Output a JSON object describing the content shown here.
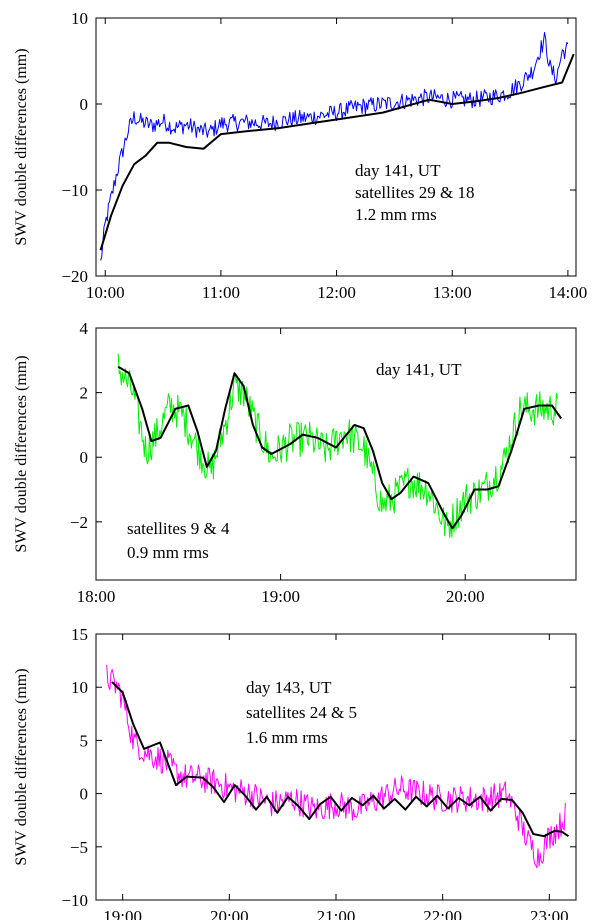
{
  "chart_data": [
    {
      "type": "line",
      "ylabel": "SWV double differences (mm)",
      "xlabel": "",
      "xlim": [
        9.92,
        14.07
      ],
      "ylim": [
        -20,
        10
      ],
      "x_ticks": [
        10,
        11,
        12,
        13,
        14
      ],
      "x_tick_labels": [
        "10:00",
        "11:00",
        "12:00",
        "13:00",
        "14:00"
      ],
      "y_ticks": [
        -20,
        -10,
        0,
        10
      ],
      "y_tick_labels": [
        "−20",
        "−10",
        "0",
        "10"
      ],
      "annotations": [
        "day 141, UT",
        "satellites 29 & 18",
        "1.2 mm rms"
      ],
      "annotation_placement": "right-center",
      "series": [
        {
          "style": "noisy-observed",
          "color": "#0000ff",
          "x": [
            9.96,
            10.0,
            10.05,
            10.1,
            10.15,
            10.2,
            10.25,
            10.3,
            10.4,
            10.5,
            10.6,
            10.7,
            10.8,
            10.9,
            11.0,
            11.2,
            11.4,
            11.6,
            11.8,
            12.0,
            12.2,
            12.4,
            12.6,
            12.8,
            13.0,
            13.2,
            13.4,
            13.5,
            13.6,
            13.7,
            13.75,
            13.8,
            13.85,
            13.9,
            13.95,
            14.0
          ],
          "y": [
            -18.5,
            -14,
            -11,
            -8,
            -5.5,
            -3,
            -1.5,
            -2,
            -2.5,
            -2,
            -2.8,
            -2.4,
            -3,
            -3.3,
            -2.3,
            -2.1,
            -2.3,
            -1.8,
            -1.5,
            -1.0,
            -0.3,
            0,
            0.4,
            0.8,
            0.5,
            0.5,
            1.0,
            1.5,
            2.5,
            4,
            6,
            7.5,
            4,
            3,
            6,
            6.5
          ],
          "noise": 1.0
        },
        {
          "style": "smoothed",
          "color": "#000000",
          "x": [
            9.96,
            10.05,
            10.15,
            10.25,
            10.35,
            10.45,
            10.55,
            10.7,
            10.85,
            11.0,
            11.2,
            11.5,
            11.8,
            12.0,
            12.4,
            12.8,
            13.0,
            13.2,
            13.4,
            13.6,
            13.8,
            13.95,
            14.05
          ],
          "y": [
            -17,
            -13,
            -9.5,
            -7,
            -6,
            -4.5,
            -4.5,
            -5,
            -5.2,
            -3.5,
            -3.2,
            -2.8,
            -2.2,
            -1.8,
            -1.0,
            0.5,
            0,
            0.3,
            0.7,
            1.3,
            2.0,
            2.5,
            5.8
          ],
          "noise": 0
        }
      ]
    },
    {
      "type": "line",
      "ylabel": "SWV double differences (mm)",
      "xlabel": "",
      "xlim": [
        18.0,
        20.6
      ],
      "ylim": [
        -3.8,
        4
      ],
      "x_ticks": [
        18,
        19,
        20
      ],
      "x_tick_labels": [
        "18:00",
        "19:00",
        "20:00"
      ],
      "y_ticks": [
        -2,
        0,
        2,
        4
      ],
      "y_tick_labels": [
        "−2",
        "0",
        "2",
        "4"
      ],
      "annotations": [
        "day 141, UT",
        "satellites 9 & 4",
        "0.9 mm rms"
      ],
      "annotation_placement": "top-right and bottom-left",
      "series": [
        {
          "style": "noisy-observed",
          "color": "#00ee00",
          "x": [
            18.12,
            18.2,
            18.27,
            18.33,
            18.4,
            18.47,
            18.55,
            18.62,
            18.7,
            18.75,
            18.8,
            18.88,
            18.95,
            19.05,
            19.15,
            19.25,
            19.35,
            19.45,
            19.55,
            19.6,
            19.7,
            19.8,
            19.9,
            20.0,
            20.1,
            20.2,
            20.3,
            20.4,
            20.5
          ],
          "y": [
            2.8,
            2.0,
            0.2,
            0.7,
            1.6,
            1.3,
            0.3,
            -0.5,
            1.0,
            2.2,
            2.0,
            0.8,
            0.0,
            0.5,
            0.6,
            0.2,
            0.8,
            0.3,
            -1.5,
            -1.3,
            -0.7,
            -1.0,
            -2.2,
            -1.3,
            -1.0,
            -0.3,
            1.5,
            1.5,
            1.5
          ],
          "noise": 0.55
        },
        {
          "style": "smoothed",
          "color": "#000000",
          "x": [
            18.12,
            18.18,
            18.25,
            18.3,
            18.35,
            18.43,
            18.5,
            18.55,
            18.6,
            18.65,
            18.7,
            18.75,
            18.8,
            18.85,
            18.9,
            18.95,
            19.05,
            19.12,
            19.2,
            19.3,
            19.4,
            19.45,
            19.5,
            19.55,
            19.6,
            19.65,
            19.72,
            19.8,
            19.88,
            19.93,
            19.98,
            20.05,
            20.12,
            20.18,
            20.25,
            20.32,
            20.4,
            20.47,
            20.52
          ],
          "y": [
            2.8,
            2.6,
            1.5,
            0.5,
            0.6,
            1.5,
            1.6,
            0.8,
            -0.3,
            0.2,
            1.5,
            2.6,
            2.2,
            1.0,
            0.3,
            0.1,
            0.4,
            0.7,
            0.6,
            0.3,
            1.0,
            0.9,
            0.2,
            -0.8,
            -1.3,
            -1.1,
            -0.6,
            -0.8,
            -1.7,
            -2.2,
            -1.8,
            -1.0,
            -1.0,
            -0.9,
            0.2,
            1.5,
            1.6,
            1.6,
            1.2
          ],
          "noise": 0
        }
      ]
    },
    {
      "type": "line",
      "ylabel": "SWV double differences (mm)",
      "xlabel": "",
      "xlim": [
        18.75,
        23.25
      ],
      "ylim": [
        -10,
        15
      ],
      "x_ticks": [
        19,
        20,
        21,
        22,
        23
      ],
      "x_tick_labels": [
        "19:00",
        "20:00",
        "21:00",
        "22:00",
        "23:00"
      ],
      "y_ticks": [
        -10,
        -5,
        0,
        5,
        10,
        15
      ],
      "y_tick_labels": [
        "−10",
        "−5",
        "0",
        "5",
        "10",
        "15"
      ],
      "annotations": [
        "day 143, UT",
        "satellites 24 & 5",
        "1.6 mm rms"
      ],
      "annotation_placement": "top-center",
      "series": [
        {
          "style": "noisy-observed",
          "color": "#ff00ff",
          "x": [
            18.85,
            18.95,
            19.0,
            19.05,
            19.1,
            19.2,
            19.3,
            19.4,
            19.5,
            19.6,
            19.7,
            19.8,
            19.9,
            20.0,
            20.2,
            20.4,
            20.6,
            20.8,
            21.0,
            21.2,
            21.4,
            21.6,
            21.8,
            22.0,
            22.2,
            22.4,
            22.6,
            22.7,
            22.8,
            22.9,
            23.0,
            23.1,
            23.15
          ],
          "y": [
            11,
            10,
            9,
            7,
            5,
            4,
            3.5,
            3,
            2,
            1.5,
            1.5,
            1.2,
            1,
            0.5,
            0,
            -1,
            -0.5,
            -1.5,
            -1,
            -1.5,
            -0.5,
            0.5,
            0,
            -0.5,
            -0.5,
            -0.5,
            0,
            -2,
            -4.5,
            -6,
            -4,
            -3,
            -2
          ],
          "noise": 1.3
        },
        {
          "style": "smoothed",
          "color": "#000000",
          "x": [
            18.9,
            19.0,
            19.1,
            19.2,
            19.35,
            19.5,
            19.6,
            19.75,
            19.85,
            19.95,
            20.05,
            20.15,
            20.25,
            20.35,
            20.45,
            20.55,
            20.65,
            20.75,
            20.85,
            20.95,
            21.05,
            21.15,
            21.25,
            21.35,
            21.45,
            21.55,
            21.65,
            21.75,
            21.85,
            21.95,
            22.05,
            22.15,
            22.25,
            22.35,
            22.45,
            22.55,
            22.65,
            22.75,
            22.85,
            22.95,
            23.05,
            23.12,
            23.18
          ],
          "y": [
            10.5,
            9.5,
            6.5,
            4.2,
            4.8,
            0.8,
            1.6,
            1.5,
            0.6,
            -0.8,
            0.8,
            -0.2,
            -1.5,
            -0.3,
            -1.8,
            -0.3,
            -1.2,
            -2.4,
            -1.0,
            -0.3,
            -1.6,
            -0.4,
            -1.1,
            -0.2,
            -1.4,
            -0.5,
            -1.5,
            -0.3,
            -1.2,
            -0.2,
            -1.4,
            -0.4,
            -1.1,
            -0.3,
            -1.6,
            -0.5,
            -0.6,
            -1.8,
            -3.8,
            -4.0,
            -3.5,
            -3.6,
            -4.0
          ],
          "noise": 0
        }
      ]
    }
  ]
}
